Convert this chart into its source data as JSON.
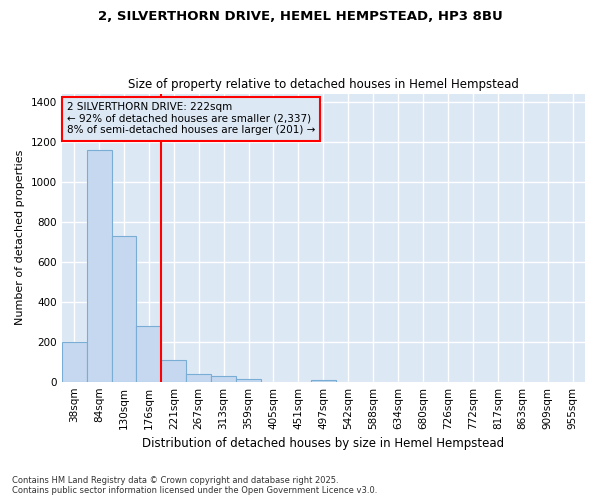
{
  "title1": "2, SILVERTHORN DRIVE, HEMEL HEMPSTEAD, HP3 8BU",
  "title2": "Size of property relative to detached houses in Hemel Hempstead",
  "xlabel": "Distribution of detached houses by size in Hemel Hempstead",
  "ylabel": "Number of detached properties",
  "categories": [
    "38sqm",
    "84sqm",
    "130sqm",
    "176sqm",
    "221sqm",
    "267sqm",
    "313sqm",
    "359sqm",
    "405sqm",
    "451sqm",
    "497sqm",
    "542sqm",
    "588sqm",
    "634sqm",
    "680sqm",
    "726sqm",
    "772sqm",
    "817sqm",
    "863sqm",
    "909sqm",
    "955sqm"
  ],
  "values": [
    200,
    1160,
    730,
    280,
    110,
    40,
    30,
    15,
    0,
    0,
    10,
    0,
    0,
    0,
    0,
    0,
    0,
    0,
    0,
    0,
    0
  ],
  "bar_color": "#c5d8f0",
  "bar_edge_color": "#7aadd4",
  "background_color": "#eef2fb",
  "plot_bg_color": "#dde8f5",
  "red_line_x": 3.5,
  "annotation_line1": "2 SILVERTHORN DRIVE: 222sqm",
  "annotation_line2": "← 92% of detached houses are smaller (2,337)",
  "annotation_line3": "8% of semi-detached houses are larger (201) →",
  "ylim": [
    0,
    1440
  ],
  "yticks": [
    0,
    200,
    400,
    600,
    800,
    1000,
    1200,
    1400
  ],
  "footer": "Contains HM Land Registry data © Crown copyright and database right 2025.\nContains public sector information licensed under the Open Government Licence v3.0.",
  "figsize": [
    6.0,
    5.0
  ],
  "dpi": 100
}
